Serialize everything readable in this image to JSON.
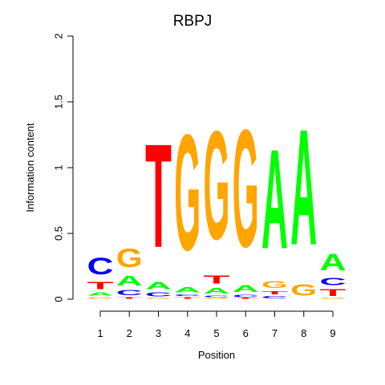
{
  "chart_data": {
    "type": "sequence_logo",
    "title": "RBPJ",
    "xlabel": "Position",
    "ylabel": "Information content",
    "ylim": [
      0,
      2
    ],
    "yticks": [
      0,
      0.5,
      1,
      1.5,
      2
    ],
    "ytick_labels": [
      "0",
      "0.5",
      "1",
      "1.5",
      "2"
    ],
    "positions": [
      "1",
      "2",
      "3",
      "4",
      "5",
      "6",
      "7",
      "8",
      "9"
    ],
    "colors": {
      "A": "#00ff00",
      "C": "#0000ff",
      "G": "#ffa500",
      "T": "#ff0000"
    },
    "stacks": [
      [
        {
          "letter": "G",
          "value": 0.02
        },
        {
          "letter": "A",
          "value": 0.04
        },
        {
          "letter": "T",
          "value": 0.09
        },
        {
          "letter": "C",
          "value": 0.2
        }
      ],
      [
        {
          "letter": "T",
          "value": 0.02
        },
        {
          "letter": "C",
          "value": 0.06
        },
        {
          "letter": "A",
          "value": 0.12
        },
        {
          "letter": "G",
          "value": 0.23
        }
      ],
      [
        {
          "letter": "G",
          "value": 0.01
        },
        {
          "letter": "C",
          "value": 0.05
        },
        {
          "letter": "A",
          "value": 0.09
        },
        {
          "letter": "T",
          "value": 1.26
        }
      ],
      [
        {
          "letter": "T",
          "value": 0.02
        },
        {
          "letter": "C",
          "value": 0.02
        },
        {
          "letter": "A",
          "value": 0.06
        },
        {
          "letter": "G",
          "value": 1.41
        }
      ],
      [
        {
          "letter": "G",
          "value": 0.01
        },
        {
          "letter": "C",
          "value": 0.02
        },
        {
          "letter": "A",
          "value": 0.07
        },
        {
          "letter": "T",
          "value": 0.1
        },
        {
          "letter": "G",
          "value": 1.32
        }
      ],
      [
        {
          "letter": "T",
          "value": 0.01
        },
        {
          "letter": "C",
          "value": 0.03
        },
        {
          "letter": "A",
          "value": 0.08
        },
        {
          "letter": "G",
          "value": 1.43
        }
      ],
      [
        {
          "letter": "C",
          "value": 0.03
        },
        {
          "letter": "T",
          "value": 0.04
        },
        {
          "letter": "G",
          "value": 0.08
        },
        {
          "letter": "A",
          "value": 1.21
        }
      ],
      [
        {
          "letter": "G",
          "value": 0.14
        },
        {
          "letter": "A",
          "value": 1.41
        }
      ],
      [
        {
          "letter": "G",
          "value": 0.01
        },
        {
          "letter": "T",
          "value": 0.08
        },
        {
          "letter": "C",
          "value": 0.09
        },
        {
          "letter": "A",
          "value": 0.2
        }
      ]
    ]
  }
}
